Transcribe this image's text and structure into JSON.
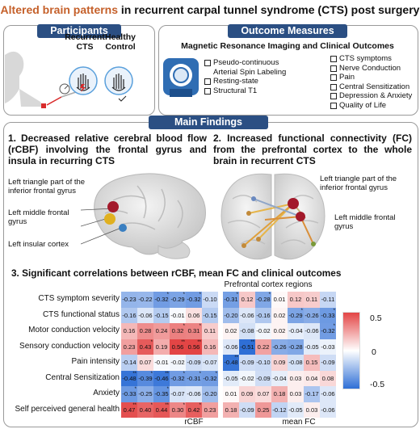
{
  "title": {
    "accent": "Altered brain patterns",
    "rest": " in recurrent carpal tunnel syndrome (CTS) post surgery"
  },
  "participants": {
    "header": "Participants",
    "group1": [
      "Recurrent",
      "CTS"
    ],
    "group2": [
      "Healthy",
      "Control"
    ]
  },
  "outcomes": {
    "header": "Outcome Measures",
    "subtitle": "Magnetic Resonance Imaging and Clinical Outcomes",
    "mri": [
      "Pseudo-continuous",
      "Arterial Spin Labeling",
      "Resting-state",
      "Structural T1"
    ],
    "clinical": [
      "CTS symptoms",
      "Nerve Conduction",
      "Pain",
      "Central Sensitization",
      "Depression & Anxiety",
      "Quality of Life"
    ]
  },
  "main_findings": {
    "header": "Main Findings",
    "finding1": "1.  Decreased relative cerebral blood flow (rCBF) involving the frontal gyrus and insula in recurring CTS",
    "finding2": "2.  Increased functional connectivity (FC) from the prefrontal cortex to the whole brain in recurrent CTS",
    "brain1_labels": [
      "Left triangle part of the inferior frontal gyrus",
      "Left middle frontal gyrus",
      "Left insular cortex"
    ],
    "brain2_labels": [
      "Left triangle part of the inferior frontal gyrus",
      "Left middle frontal gyrus"
    ],
    "finding3": "3.  Significant correlations between rCBF, mean FC and clinical outcomes"
  },
  "chart_data": {
    "type": "heatmap",
    "column_group_label": "Prefrontal cortex regions",
    "x_group_labels": [
      "rCBF",
      "mean FC"
    ],
    "rows": [
      "CTS symptom severity",
      "CTS functional status",
      "Motor conduction velocity",
      "Sensory conduction velocity",
      "Pain intensity",
      "Central Sensitization",
      "Anxiety",
      "Self perceived general health"
    ],
    "rcbf_values": [
      [
        -0.23,
        -0.22,
        -0.32,
        -0.29,
        -0.32,
        -0.1
      ],
      [
        -0.16,
        -0.06,
        -0.15,
        -0.01,
        0.06,
        -0.15
      ],
      [
        0.16,
        0.28,
        0.24,
        0.32,
        0.31,
        0.11
      ],
      [
        0.23,
        0.43,
        0.19,
        0.56,
        0.56,
        0.16
      ],
      [
        -0.14,
        0.07,
        -0.01,
        -0.02,
        -0.09,
        -0.07
      ],
      [
        -0.48,
        -0.39,
        -0.46,
        -0.32,
        -0.31,
        -0.32
      ],
      [
        -0.33,
        -0.25,
        -0.35,
        -0.07,
        -0.06,
        -0.2
      ],
      [
        0.47,
        0.4,
        0.44,
        0.3,
        0.42,
        0.23
      ]
    ],
    "fc_values": [
      [
        -0.31,
        0.12,
        -0.28,
        0.01,
        0.12,
        0.11,
        -0.11
      ],
      [
        -0.2,
        -0.06,
        -0.16,
        0.02,
        -0.29,
        -0.26,
        -0.33
      ],
      [
        0.02,
        -0.08,
        -0.02,
        0.02,
        -0.04,
        -0.06,
        -0.32
      ],
      [
        -0.06,
        -0.51,
        0.22,
        -0.26,
        -0.28,
        -0.05,
        -0.03
      ],
      [
        -0.48,
        -0.09,
        -0.1,
        0.09,
        -0.08,
        0.15,
        -0.09
      ],
      [
        -0.05,
        -0.02,
        -0.09,
        -0.04,
        0.03,
        0.04,
        0.08
      ],
      [
        0.01,
        0.09,
        0.07,
        0.18,
        0.03,
        -0.17,
        -0.06
      ],
      [
        0.18,
        -0.09,
        0.25,
        -0.12,
        -0.05,
        0.03,
        -0.06
      ]
    ],
    "rcbf_sig": [
      [
        0,
        0,
        1,
        1,
        1,
        0
      ],
      [
        0,
        0,
        0,
        0,
        0,
        0
      ],
      [
        0,
        0,
        0,
        1,
        1,
        0
      ],
      [
        0,
        1,
        0,
        2,
        2,
        0
      ],
      [
        0,
        0,
        0,
        0,
        0,
        0
      ],
      [
        2,
        1,
        2,
        1,
        1,
        1
      ],
      [
        1,
        0,
        1,
        0,
        0,
        0
      ],
      [
        2,
        1,
        2,
        1,
        1,
        0
      ]
    ],
    "fc_sig": [
      [
        1,
        0,
        1,
        0,
        0,
        0,
        0
      ],
      [
        0,
        0,
        0,
        0,
        1,
        0,
        1
      ],
      [
        0,
        0,
        0,
        0,
        0,
        0,
        1
      ],
      [
        0,
        2,
        0,
        0,
        0,
        0,
        0
      ],
      [
        2,
        0,
        0,
        0,
        0,
        0,
        0
      ],
      [
        0,
        0,
        0,
        0,
        0,
        0,
        0
      ],
      [
        0,
        0,
        0,
        0,
        0,
        0,
        0
      ],
      [
        0,
        0,
        0,
        0,
        0,
        0,
        0
      ]
    ],
    "color_range": [
      -0.5,
      0.5
    ],
    "colorbar_ticks": [
      "0.5",
      "0",
      "-0.5"
    ],
    "colors": {
      "negative": "#2f6fd6",
      "positive": "#e34545",
      "neutral": "#ffffff"
    }
  },
  "colors": {
    "header_bg": "#2b4f83",
    "accent": "#c5602a",
    "node_red": "#a3192b",
    "node_yellow": "#e0b020",
    "node_blue": "#3a7fc1"
  }
}
